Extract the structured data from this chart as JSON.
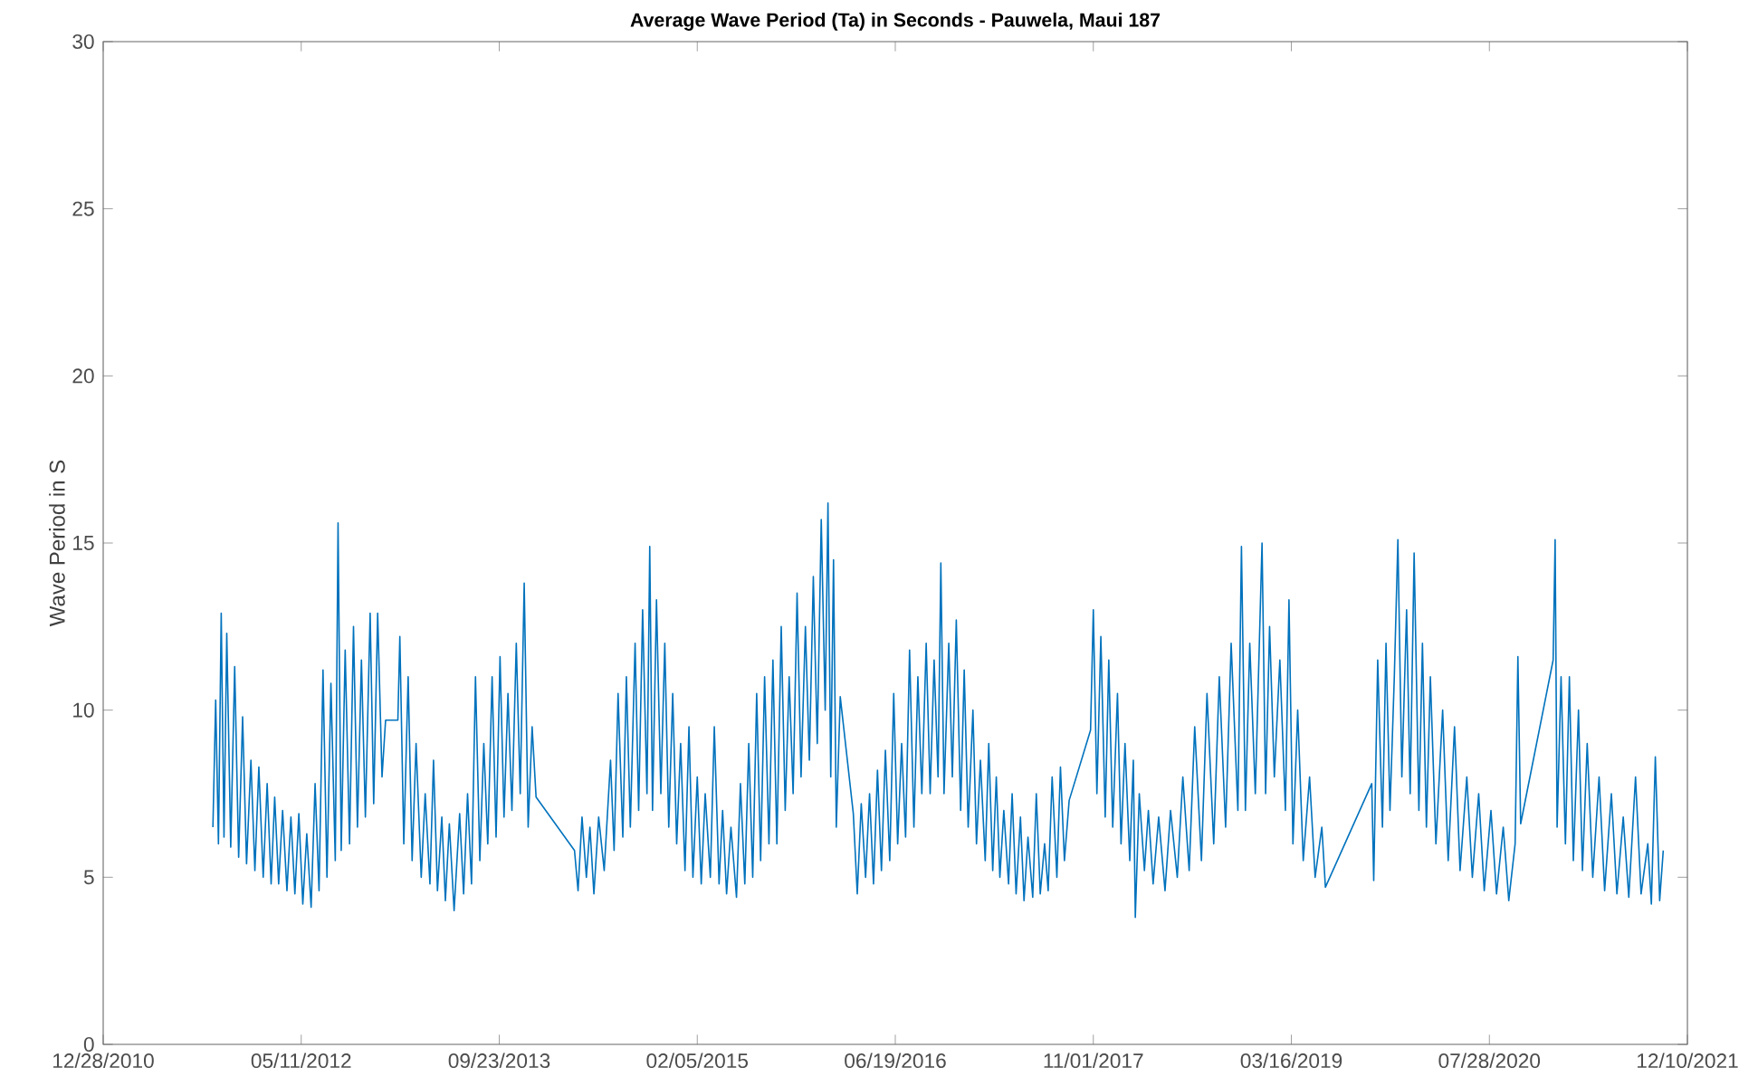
{
  "chart_data": {
    "type": "line",
    "title": "Average Wave Period (Ta) in Seconds - Pauwela, Maui 187",
    "ylabel": "Wave Period in S",
    "xlim": [
      "2010-12-28",
      "2021-12-10"
    ],
    "xticks": [
      {
        "value": "2010-12-28",
        "label": "12/28/2010"
      },
      {
        "value": "2012-05-11",
        "label": "05/11/2012"
      },
      {
        "value": "2013-09-23",
        "label": "09/23/2013"
      },
      {
        "value": "2015-02-05",
        "label": "02/05/2015"
      },
      {
        "value": "2016-06-19",
        "label": "06/19/2016"
      },
      {
        "value": "2017-11-01",
        "label": "11/01/2017"
      },
      {
        "value": "2019-03-16",
        "label": "03/16/2019"
      },
      {
        "value": "2020-07-28",
        "label": "07/28/2020"
      },
      {
        "value": "2021-12-10",
        "label": "12/10/2021"
      }
    ],
    "ylim": [
      0,
      30
    ],
    "yticks": [
      0,
      5,
      10,
      15,
      20,
      25,
      30
    ],
    "grid": false,
    "series": [
      {
        "color": "#0072bd",
        "x": [
          "2011-10-01",
          "2011-10-08",
          "2011-10-15",
          "2011-10-22",
          "2011-10-29",
          "2011-11-05",
          "2011-11-15",
          "2011-11-25",
          "2011-12-05",
          "2011-12-15",
          "2011-12-25",
          "2012-01-05",
          "2012-01-15",
          "2012-01-25",
          "2012-02-05",
          "2012-02-15",
          "2012-02-25",
          "2012-03-05",
          "2012-03-15",
          "2012-03-25",
          "2012-04-05",
          "2012-04-15",
          "2012-04-25",
          "2012-05-05",
          "2012-05-15",
          "2012-05-25",
          "2012-06-05",
          "2012-06-15",
          "2012-06-25",
          "2012-07-05",
          "2012-07-15",
          "2012-07-25",
          "2012-08-05",
          "2012-08-12",
          "2012-08-20",
          "2012-08-30",
          "2012-09-10",
          "2012-09-20",
          "2012-09-30",
          "2012-10-10",
          "2012-10-20",
          "2012-11-01",
          "2012-11-10",
          "2012-11-20",
          "2012-12-01",
          "2012-12-10",
          "2013-01-10",
          "2013-01-15",
          "2013-01-25",
          "2013-02-05",
          "2013-02-15",
          "2013-02-25",
          "2013-03-10",
          "2013-03-20",
          "2013-04-01",
          "2013-04-10",
          "2013-04-20",
          "2013-05-01",
          "2013-05-10",
          "2013-05-20",
          "2013-06-01",
          "2013-06-15",
          "2013-06-25",
          "2013-07-05",
          "2013-07-15",
          "2013-07-25",
          "2013-08-05",
          "2013-08-15",
          "2013-08-25",
          "2013-09-05",
          "2013-09-15",
          "2013-09-25",
          "2013-10-05",
          "2013-10-15",
          "2013-10-25",
          "2013-11-05",
          "2013-11-15",
          "2013-11-25",
          "2013-12-05",
          "2013-12-15",
          "2013-12-25",
          "2014-04-01",
          "2014-04-10",
          "2014-04-20",
          "2014-05-01",
          "2014-05-10",
          "2014-05-20",
          "2014-06-01",
          "2014-06-15",
          "2014-07-01",
          "2014-07-10",
          "2014-07-20",
          "2014-08-01",
          "2014-08-10",
          "2014-08-20",
          "2014-09-01",
          "2014-09-10",
          "2014-09-20",
          "2014-10-01",
          "2014-10-08",
          "2014-10-15",
          "2014-10-25",
          "2014-11-05",
          "2014-11-15",
          "2014-11-25",
          "2014-12-05",
          "2014-12-15",
          "2014-12-25",
          "2015-01-05",
          "2015-01-15",
          "2015-01-25",
          "2015-02-05",
          "2015-02-15",
          "2015-02-25",
          "2015-03-10",
          "2015-03-20",
          "2015-04-01",
          "2015-04-10",
          "2015-04-20",
          "2015-05-01",
          "2015-05-15",
          "2015-05-25",
          "2015-06-05",
          "2015-06-15",
          "2015-06-25",
          "2015-07-05",
          "2015-07-15",
          "2015-07-25",
          "2015-08-05",
          "2015-08-15",
          "2015-08-25",
          "2015-09-05",
          "2015-09-15",
          "2015-09-25",
          "2015-10-05",
          "2015-10-15",
          "2015-10-25",
          "2015-11-05",
          "2015-11-15",
          "2015-11-25",
          "2015-12-05",
          "2015-12-15",
          "2015-12-25",
          "2016-01-01",
          "2016-01-08",
          "2016-01-15",
          "2016-01-22",
          "2016-02-01",
          "2016-03-05",
          "2016-03-15",
          "2016-03-25",
          "2016-04-05",
          "2016-04-15",
          "2016-04-25",
          "2016-05-05",
          "2016-05-15",
          "2016-05-25",
          "2016-06-05",
          "2016-06-15",
          "2016-06-25",
          "2016-07-05",
          "2016-07-15",
          "2016-07-25",
          "2016-08-05",
          "2016-08-15",
          "2016-08-25",
          "2016-09-05",
          "2016-09-15",
          "2016-09-25",
          "2016-10-05",
          "2016-10-12",
          "2016-10-20",
          "2016-11-01",
          "2016-11-10",
          "2016-11-20",
          "2016-12-01",
          "2016-12-10",
          "2016-12-20",
          "2017-01-01",
          "2017-01-10",
          "2017-01-20",
          "2017-02-01",
          "2017-02-10",
          "2017-02-20",
          "2017-03-01",
          "2017-03-10",
          "2017-03-20",
          "2017-04-01",
          "2017-04-10",
          "2017-04-20",
          "2017-05-01",
          "2017-05-10",
          "2017-05-20",
          "2017-06-01",
          "2017-06-10",
          "2017-06-20",
          "2017-07-01",
          "2017-07-10",
          "2017-07-20",
          "2017-08-01",
          "2017-08-10",
          "2017-08-20",
          "2017-09-01",
          "2017-10-25",
          "2017-11-01",
          "2017-11-10",
          "2017-11-20",
          "2017-12-01",
          "2017-12-10",
          "2017-12-20",
          "2018-01-01",
          "2018-01-10",
          "2018-01-20",
          "2018-02-01",
          "2018-02-10",
          "2018-02-15",
          "2018-02-25",
          "2018-03-10",
          "2018-03-20",
          "2018-04-01",
          "2018-04-15",
          "2018-05-01",
          "2018-05-15",
          "2018-06-01",
          "2018-06-15",
          "2018-07-01",
          "2018-07-15",
          "2018-08-01",
          "2018-08-15",
          "2018-09-01",
          "2018-09-15",
          "2018-10-01",
          "2018-10-15",
          "2018-11-01",
          "2018-11-10",
          "2018-11-20",
          "2018-12-01",
          "2018-12-15",
          "2019-01-01",
          "2019-01-10",
          "2019-01-20",
          "2019-02-01",
          "2019-02-15",
          "2019-03-01",
          "2019-03-10",
          "2019-03-20",
          "2019-04-01",
          "2019-04-15",
          "2019-05-01",
          "2019-05-15",
          "2019-06-01",
          "2019-06-10",
          "2019-10-05",
          "2019-10-10",
          "2019-10-20",
          "2019-11-01",
          "2019-11-10",
          "2019-11-20",
          "2019-12-01",
          "2019-12-10",
          "2019-12-20",
          "2020-01-01",
          "2020-01-10",
          "2020-01-20",
          "2020-02-01",
          "2020-02-10",
          "2020-02-20",
          "2020-03-01",
          "2020-03-15",
          "2020-04-01",
          "2020-04-15",
          "2020-05-01",
          "2020-05-15",
          "2020-06-01",
          "2020-06-15",
          "2020-07-01",
          "2020-07-15",
          "2020-08-01",
          "2020-08-15",
          "2020-09-01",
          "2020-09-15",
          "2020-10-01",
          "2020-10-08",
          "2020-10-15",
          "2021-01-05",
          "2021-01-10",
          "2021-01-15",
          "2021-01-25",
          "2021-02-05",
          "2021-02-15",
          "2021-02-25",
          "2021-03-10",
          "2021-03-20",
          "2021-04-01",
          "2021-04-15",
          "2021-05-01",
          "2021-05-15",
          "2021-06-01",
          "2021-06-15",
          "2021-07-01",
          "2021-07-15",
          "2021-08-01",
          "2021-08-15",
          "2021-09-01",
          "2021-09-10",
          "2021-09-20",
          "2021-10-01",
          "2021-10-10"
        ],
        "values": [
          6.5,
          10.3,
          6.0,
          12.9,
          6.2,
          12.3,
          5.9,
          11.3,
          5.6,
          9.8,
          5.4,
          8.5,
          5.2,
          8.3,
          5.0,
          7.8,
          4.8,
          7.4,
          4.8,
          7.0,
          4.6,
          6.8,
          4.5,
          6.9,
          4.2,
          6.3,
          4.1,
          7.8,
          4.6,
          11.2,
          5.0,
          10.8,
          5.5,
          15.6,
          5.8,
          11.8,
          6.0,
          12.5,
          6.5,
          11.5,
          6.8,
          12.9,
          7.2,
          12.9,
          8.0,
          9.7,
          9.7,
          12.2,
          6.0,
          11.0,
          5.5,
          9.0,
          5.0,
          7.5,
          4.8,
          8.5,
          4.6,
          6.8,
          4.3,
          6.6,
          4.0,
          6.9,
          4.5,
          7.5,
          4.8,
          11.0,
          5.5,
          9.0,
          6.0,
          11.0,
          6.2,
          11.6,
          6.8,
          10.5,
          7.0,
          12.0,
          7.5,
          13.8,
          6.5,
          9.5,
          7.4,
          5.8,
          4.6,
          6.8,
          5.0,
          6.5,
          4.5,
          6.8,
          5.2,
          8.5,
          5.8,
          10.5,
          6.2,
          11.0,
          6.5,
          12.0,
          7.0,
          13.0,
          7.5,
          14.9,
          7.0,
          13.3,
          7.5,
          12.0,
          6.5,
          10.5,
          6.0,
          9.0,
          5.2,
          9.5,
          5.0,
          8.0,
          4.8,
          7.5,
          5.0,
          9.5,
          4.8,
          7.0,
          4.5,
          6.5,
          4.4,
          7.8,
          4.8,
          9.0,
          5.0,
          10.5,
          5.5,
          11.0,
          6.0,
          11.5,
          6.0,
          12.5,
          7.0,
          11.0,
          7.5,
          13.5,
          8.0,
          12.5,
          8.5,
          14.0,
          9.0,
          15.7,
          10.0,
          16.2,
          8.0,
          14.5,
          6.5,
          10.4,
          6.9,
          4.5,
          7.2,
          5.0,
          7.5,
          4.8,
          8.2,
          5.2,
          8.8,
          5.5,
          10.5,
          6.0,
          9.0,
          6.2,
          11.8,
          6.5,
          11.0,
          7.5,
          12.0,
          7.5,
          11.5,
          8.0,
          14.4,
          7.5,
          12.0,
          8.0,
          12.7,
          7.0,
          11.2,
          6.5,
          10.0,
          6.0,
          8.5,
          5.5,
          9.0,
          5.2,
          8.0,
          5.0,
          7.0,
          4.8,
          7.5,
          4.5,
          6.8,
          4.3,
          6.2,
          4.4,
          7.5,
          4.5,
          6.0,
          4.6,
          8.0,
          5.0,
          8.3,
          5.5,
          7.3,
          9.4,
          13.0,
          7.5,
          12.2,
          6.8,
          11.5,
          6.5,
          10.5,
          6.0,
          9.0,
          5.5,
          8.5,
          3.8,
          7.5,
          5.2,
          7.0,
          4.8,
          6.8,
          4.6,
          7.0,
          5.0,
          8.0,
          5.2,
          9.5,
          5.5,
          10.5,
          6.0,
          11.0,
          6.5,
          12.0,
          7.0,
          14.9,
          7.0,
          12.0,
          7.5,
          15.0,
          7.5,
          12.5,
          8.0,
          11.5,
          7.0,
          13.3,
          6.0,
          10.0,
          5.5,
          8.0,
          5.0,
          6.5,
          4.7,
          7.8,
          4.9,
          11.5,
          6.5,
          12.0,
          7.0,
          11.0,
          15.1,
          8.0,
          13.0,
          7.5,
          14.7,
          7.0,
          12.0,
          6.5,
          11.0,
          6.0,
          10.0,
          5.5,
          9.5,
          5.2,
          8.0,
          5.0,
          7.5,
          4.6,
          7.0,
          4.5,
          6.5,
          4.3,
          6.0,
          11.6,
          6.6,
          11.5,
          15.1,
          6.5,
          11.0,
          6.0,
          11.0,
          5.5,
          10.0,
          5.2,
          9.0,
          5.0,
          8.0,
          4.6,
          7.5,
          4.5,
          6.8,
          4.4,
          8.0,
          4.5,
          6.0,
          4.2,
          8.6,
          4.3,
          5.8
        ]
      }
    ]
  }
}
